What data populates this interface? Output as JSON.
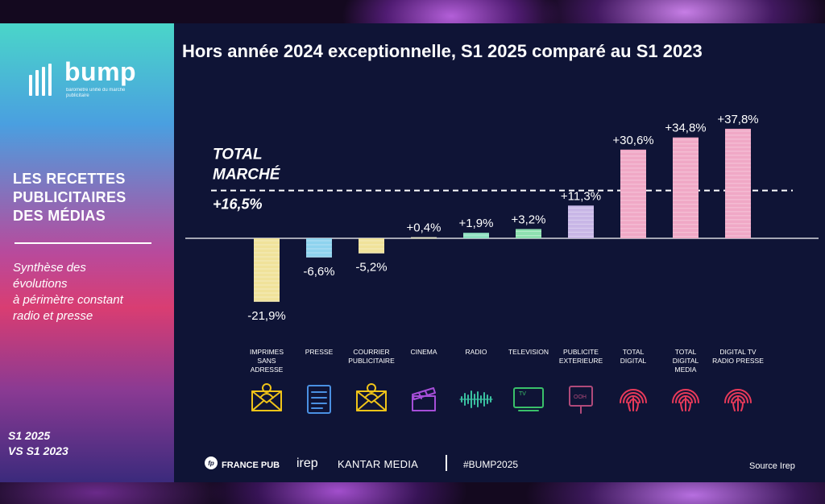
{
  "left_panel": {
    "logo_word": "bump",
    "logo_tagline": "baromètre unifié du marché publicitaire",
    "title_lines": [
      "LES RECETTES",
      "PUBLICITAIRES",
      "DES MÉDIAS"
    ],
    "subtitle_lines": [
      "Synthèse des",
      "évolutions",
      "à périmètre constant",
      "radio et presse"
    ],
    "period_lines": [
      "S1 2025",
      "VS S1 2023"
    ]
  },
  "chart_data": {
    "type": "bar",
    "title": "Hors année 2024 exceptionnelle, S1 2025 comparé au S1 2023",
    "categories": [
      [
        "IMPRIMES",
        "SANS",
        "ADRESSE"
      ],
      [
        "PRESSE"
      ],
      [
        "COURRIER",
        "PUBLICITAIRE"
      ],
      [
        "CINEMA"
      ],
      [
        "RADIO"
      ],
      [
        "TELEVISION"
      ],
      [
        "PUBLICITE",
        "EXTERIEURE"
      ],
      [
        "TOTAL",
        "DIGITAL"
      ],
      [
        "TOTAL",
        "DIGITAL",
        "MEDIA"
      ],
      [
        "DIGITAL TV",
        "RADIO PRESSE"
      ]
    ],
    "values": [
      -21.9,
      -6.6,
      -5.2,
      0.4,
      1.9,
      3.2,
      11.3,
      30.6,
      34.8,
      37.8
    ],
    "value_labels": [
      "-21,9%",
      "-6,6%",
      "-5,2%",
      "+0,4%",
      "+1,9%",
      "+3,2%",
      "+11,3%",
      "+30,6%",
      "+34,8%",
      "+37,8%"
    ],
    "bar_colors": [
      "#f0e29a",
      "#8ed3ee",
      "#f0e29a",
      "#e6e6c8",
      "#8ee0c0",
      "#8ee0b0",
      "#c8b6e6",
      "#f0a8c6",
      "#f0a8c6",
      "#f0a8c6"
    ],
    "icons": [
      "letter-person-icon",
      "newspaper-icon",
      "letter-person-icon",
      "clapperboard-icon",
      "audio-wave-icon",
      "tv-icon",
      "billboard-ooh-icon",
      "fingerprint-icon",
      "fingerprint-icon",
      "fingerprint-icon"
    ],
    "icon_colors": [
      "#f0c419",
      "#4a90e2",
      "#f0c419",
      "#a64ed8",
      "#3ac0a0",
      "#3ac06a",
      "#b04a7a",
      "#e83a5a",
      "#e83a5a",
      "#e83a5a"
    ],
    "reference_line": {
      "value": 16.5,
      "label_lines": [
        "TOTAL",
        "MARCHÉ"
      ],
      "value_label": "+16,5%"
    },
    "ylim": [
      -25,
      40
    ]
  },
  "footer": {
    "francepub_mark": "fp",
    "francepub": "FRANCE PUB",
    "irep": "irep",
    "kantar": "KANTAR MEDIA",
    "hashtag": "#BUMP2025",
    "source": "Source Irep"
  }
}
